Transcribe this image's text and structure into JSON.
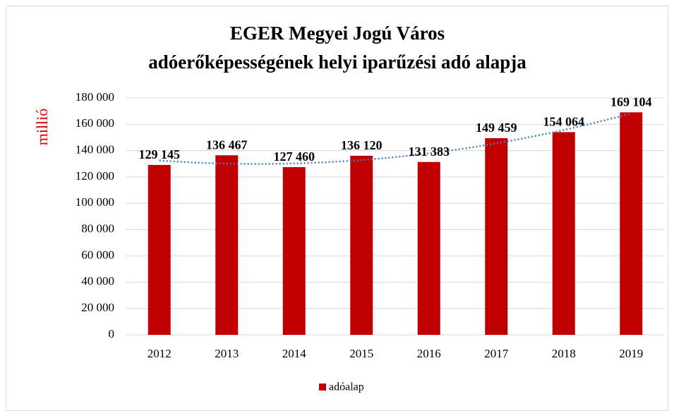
{
  "chart_data": {
    "type": "bar",
    "title": [
      "EGER Megyei Jogú Város",
      "adóerőképességének helyi iparűzési adó alapja"
    ],
    "y_label": "millió",
    "categories": [
      "2012",
      "2013",
      "2014",
      "2015",
      "2016",
      "2017",
      "2018",
      "2019"
    ],
    "series": [
      {
        "name": "adóalap",
        "color": "#c00000",
        "values": [
          129145,
          136467,
          127460,
          136120,
          131383,
          149459,
          154064,
          169104
        ],
        "value_labels": [
          "129 145",
          "136 467",
          "127 460",
          "136 120",
          "131 383",
          "149 459",
          "154 064",
          "169 104"
        ]
      }
    ],
    "ylim": [
      0,
      180000
    ],
    "yticks": [
      0,
      {
        "value": 20000,
        "label": "20 000"
      },
      {
        "value": 40000,
        "label": "40 000"
      },
      {
        "value": 60000,
        "label": "60 000"
      },
      {
        "value": 80000,
        "label": "80 000"
      },
      {
        "value": 100000,
        "label": "100 000"
      },
      {
        "value": 120000,
        "label": "120 000"
      },
      {
        "value": 140000,
        "label": "140 000"
      },
      {
        "value": 160000,
        "label": "160 000"
      },
      {
        "value": 180000,
        "label": "180 000"
      }
    ],
    "grid": true,
    "trendline": "polynomial",
    "trendline_color": "#4a7ebb",
    "legend": "bottom"
  }
}
